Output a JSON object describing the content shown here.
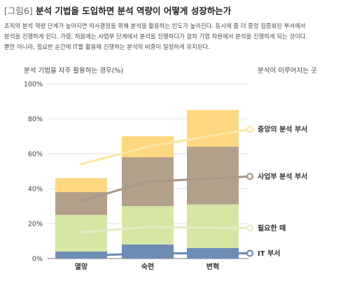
{
  "figure": {
    "tag": "[그림6]",
    "title": "분석 기법을 도입하면 분석 역량이 어떻게 성장하는가",
    "description": [
      "조직의 분석 역량 단계가 높아지면 의사결정을 위해 분석을 활용하는 빈도가 높아진다. 동시에 좀 더 중앙 집중화된 부서에서",
      "분석을 진행하게 된다. 가령, 처음에는 사업부 단계에서 분석을 진행하다가 점차 기업 차원에서 분석을 진행하게 되는 것이다.",
      "뿐만 아니라, 필요한 순간에 IT를 활용해 진행하는 분석의 비중이 일정하게 유지된다."
    ]
  },
  "chart_data": {
    "type": "bar",
    "stacked": true,
    "ylabel": "분석 기법을 자주 활용하는 경우(%)",
    "right_label": "분석이 이루어지는 곳",
    "categories": [
      "열망",
      "숙련",
      "변혁"
    ],
    "ylim": [
      0,
      100
    ],
    "yticks": [
      0,
      20,
      40,
      60,
      80,
      100
    ],
    "ytick_labels": [
      "0%",
      "20%",
      "40%",
      "60%",
      "80%",
      "100%"
    ],
    "grid": true,
    "series": [
      {
        "name": "IT 부서",
        "values": [
          4,
          8,
          6
        ],
        "color": "#6d8db5",
        "line_color": "#6d8db5"
      },
      {
        "name": "필요한 때",
        "values": [
          21,
          22,
          25
        ],
        "color": "#d6e6a5",
        "line_color": "#e4ecc4"
      },
      {
        "name": "사업부 분석 부서",
        "values": [
          13,
          28,
          33
        ],
        "color": "#b3a08b",
        "line_color": "#a9998a"
      },
      {
        "name": "중앙의 분석 부서",
        "values": [
          8,
          12,
          21
        ],
        "color": "#ffd780",
        "line_color": "#fbe7a6"
      }
    ],
    "trend_lines": [
      {
        "series": "IT 부서",
        "values": [
          1.5,
          3,
          3
        ]
      },
      {
        "series": "필요한 때",
        "values": [
          15,
          18,
          17.5
        ]
      },
      {
        "series": "사업부 분석 부서",
        "values": [
          33,
          44,
          47
        ]
      },
      {
        "series": "중앙의 분석 부서",
        "values": [
          54,
          64,
          74
        ]
      }
    ]
  }
}
